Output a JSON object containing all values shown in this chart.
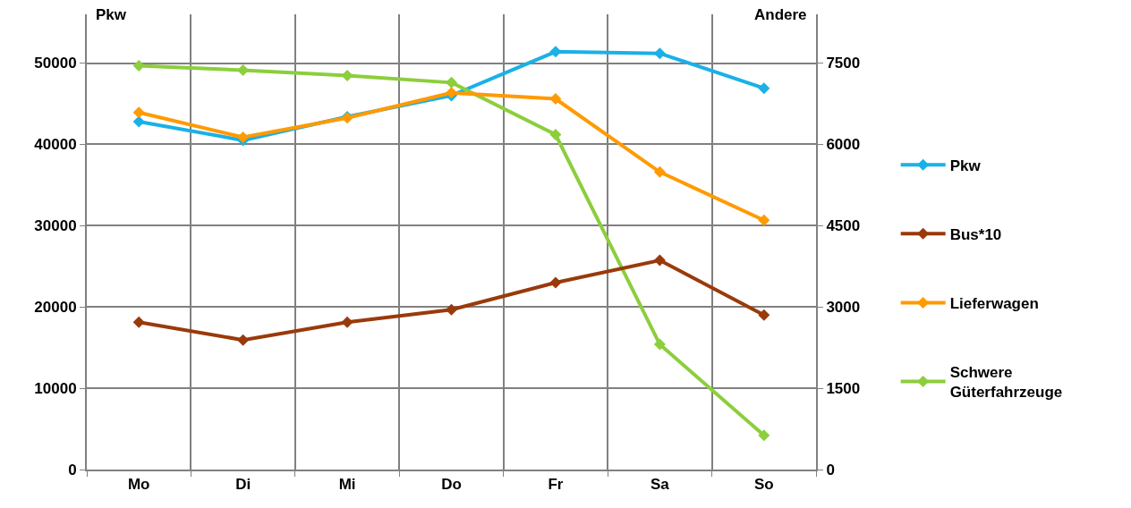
{
  "chart_data": {
    "type": "line",
    "ylabel": "Pkw",
    "y2label": "Andere",
    "categories": [
      "Mo",
      "Di",
      "Mi",
      "Do",
      "Fr",
      "Sa",
      "So"
    ],
    "series": [
      {
        "name": "Pkw",
        "color": "#1ab0e8",
        "values": [
          42800,
          40500,
          43400,
          46000,
          51400,
          51200,
          46900
        ]
      },
      {
        "name": "Bus*10",
        "color": "#9a3a0a",
        "axis": "y2",
        "values": [
          2720,
          2390,
          2720,
          2950,
          3450,
          3860,
          2850
        ]
      },
      {
        "name": "Lieferwagen",
        "color": "#ff9a00",
        "axis": "y2",
        "values": [
          6590,
          6130,
          6490,
          6950,
          6840,
          5490,
          4600
        ]
      },
      {
        "name": "Schwere\nGüterfahrzeuge",
        "color": "#8cce3c",
        "axis": "y2",
        "values": [
          7450,
          7370,
          7270,
          7140,
          6180,
          2310,
          630
        ]
      }
    ],
    "ylim": [
      0,
      56000
    ],
    "yticks": [
      0,
      10000,
      20000,
      30000,
      40000,
      50000
    ],
    "y2lim": [
      0,
      8400
    ],
    "y2ticks": [
      0,
      1500,
      3000,
      4500,
      6000,
      7500
    ],
    "grid": true,
    "legend": "right",
    "marker": "diamond",
    "line_style": "solid"
  }
}
